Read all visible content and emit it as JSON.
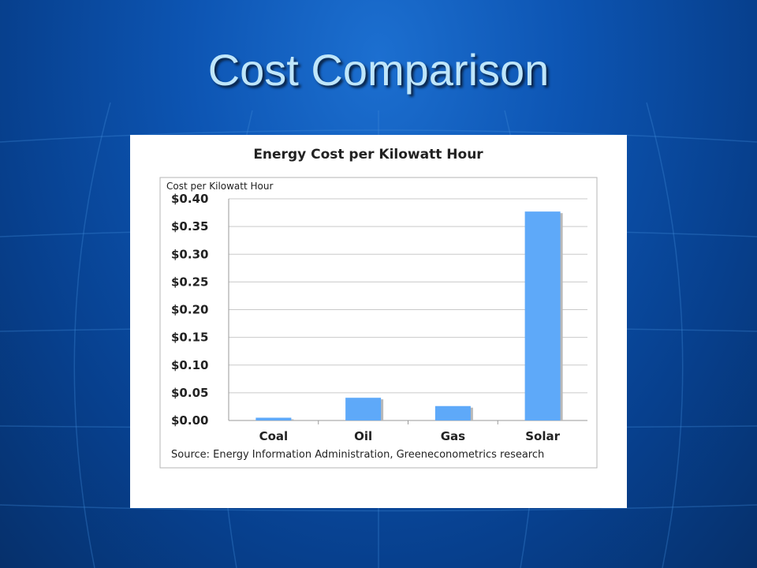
{
  "slide": {
    "title": "Cost Comparison"
  },
  "colors": {
    "bar": "#5ea9f9",
    "bar_shadow": "#b9b9b9",
    "grid": "#c9c9c9",
    "frame": "#b5b5b5"
  },
  "chart_data": {
    "type": "bar",
    "title": "Energy Cost per Kilowatt Hour",
    "ylabel": "Cost per Kilowatt Hour",
    "xlabel": "",
    "categories": [
      "Coal",
      "Oil",
      "Gas",
      "Solar"
    ],
    "values": [
      0.005,
      0.041,
      0.026,
      0.377
    ],
    "ylim": [
      0,
      0.4
    ],
    "yticks": [
      0,
      0.05,
      0.1,
      0.15,
      0.2,
      0.25,
      0.3,
      0.35,
      0.4
    ],
    "ytick_labels": [
      "$0.00",
      "$0.05",
      "$0.10",
      "$0.15",
      "$0.20",
      "$0.25",
      "$0.30",
      "$0.35",
      "$0.40"
    ],
    "grid": true,
    "legend": "none",
    "source": "Source: Energy Information Administration, Greeneconometrics research"
  }
}
